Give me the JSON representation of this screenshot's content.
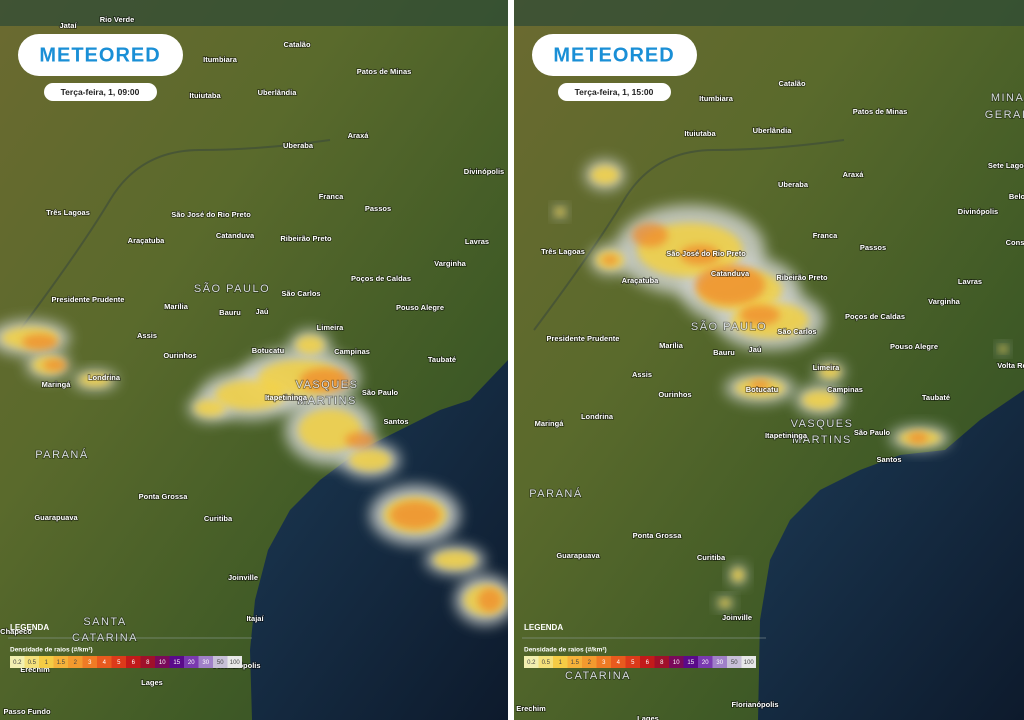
{
  "panels": [
    {
      "brand": "METEORED",
      "timestamp": "Terça-feira, 1, 09:00",
      "legend_title": "LEGENDA",
      "legend_subtitle": "Densidade de raios (#/km²)",
      "scale": [
        0.2,
        0.5,
        1,
        1.5,
        2,
        3,
        4,
        5,
        6,
        8,
        10,
        15,
        20,
        30,
        50,
        100
      ],
      "places": [
        "Jataí",
        "Rio Verde",
        "Catalão",
        "Itumbiara",
        "Patos de Minas",
        "Ituiutaba",
        "Uberlândia",
        "Araxá",
        "Uberaba",
        "Divinópolis",
        "Franca",
        "Três Lagoas",
        "São José do Rio Preto",
        "Passos",
        "Araçatuba",
        "Catanduva",
        "Ribeirão Preto",
        "Lavras",
        "Varginha",
        "Poços de Caldas",
        "São Carlos",
        "Presidente Prudente",
        "Marília",
        "Bauru",
        "Jaú",
        "Pouso Alegre",
        "Assis",
        "Limeira",
        "Ourinhos",
        "Campinas",
        "Taubaté",
        "Botucatu",
        "Maringá",
        "Londrina",
        "Itapetininga",
        "São Paulo",
        "Santos",
        "Ponta Grossa",
        "Guarapuava",
        "Curitiba",
        "Joinville",
        "Chapecó",
        "Itajaí",
        "Florianópolis",
        "Erechim",
        "Lages",
        "Passo Fundo"
      ],
      "regions": [
        "SÃO PAULO",
        "VASQUES",
        "MARTINS",
        "PARANÁ",
        "SANTA",
        "CATARINA"
      ]
    },
    {
      "brand": "METEORED",
      "timestamp": "Terça-feira, 1, 15:00",
      "legend_title": "LEGENDA",
      "legend_subtitle": "Densidade de raios (#/km²)",
      "scale": [
        0.2,
        0.5,
        1,
        1.5,
        2,
        3,
        4,
        5,
        6,
        8,
        10,
        15,
        20,
        30,
        50,
        100
      ],
      "places": [
        "Catalão",
        "Itumbiara",
        "Patos de Minas",
        "Ituiutaba",
        "Uberlândia",
        "Araxá",
        "Uberaba",
        "Sete Lagoas",
        "Belo",
        "Divinópolis",
        "Franca",
        "Passos",
        "Três Lagoas",
        "São José do Rio Preto",
        "Catanduva",
        "Ribeirão Preto",
        "Cons",
        "Lavras",
        "Araçatuba",
        "Varginha",
        "Poços de Caldas",
        "São Carlos",
        "Presidente Prudente",
        "Marília",
        "Bauru",
        "Jaú",
        "Pouso Alegre",
        "Limeira",
        "Volta Re",
        "Assis",
        "Botucatu",
        "Campinas",
        "Ourinhos",
        "Taubaté",
        "Londrina",
        "Maringá",
        "São Paulo",
        "Itapetininga",
        "Santos",
        "Ponta Grossa",
        "Guarapuava",
        "Curitiba",
        "Joinville",
        "Florianópolis",
        "Erechim",
        "Lages"
      ],
      "regions": [
        "MINAS",
        "GERAIS",
        "SÃO PAULO",
        "VASQUES",
        "MARTINS",
        "PARANÁ",
        "CATARINA"
      ]
    }
  ]
}
